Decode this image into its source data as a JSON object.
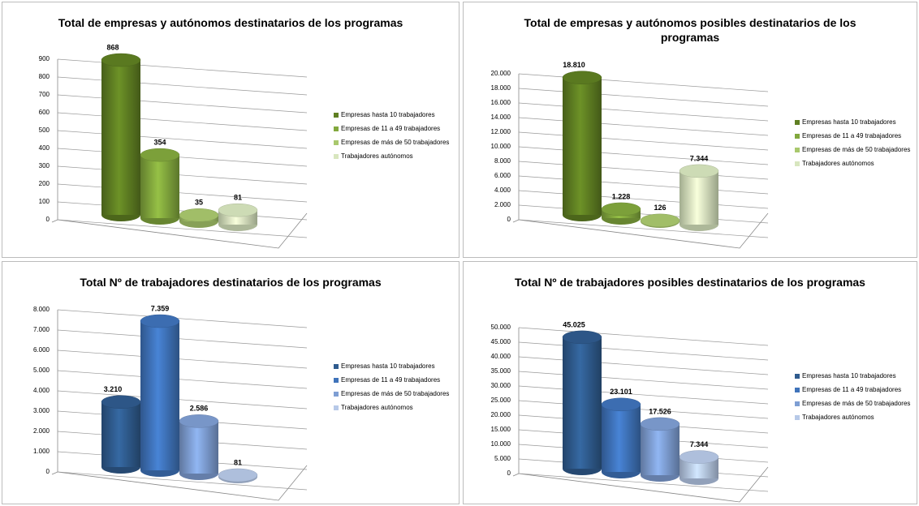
{
  "chart_data": [
    {
      "type": "bar",
      "title": "Total de empresas y autónomos destinatarios de los programas",
      "categories": [
        "Empresas hasta 10 trabajadores",
        "Empresas de 11 a 49 trabajadores",
        "Empresas de más de 50 trabajadores",
        "Trabajadores autónomos"
      ],
      "values": [
        868,
        354,
        35,
        81
      ],
      "colors": [
        "#5f7f22",
        "#82a83d",
        "#a9c86d",
        "#d8e6bf"
      ],
      "ylim": [
        0,
        900
      ],
      "yticks": [
        0,
        100,
        200,
        300,
        400,
        500,
        600,
        700,
        800,
        900
      ],
      "grid": true
    },
    {
      "type": "bar",
      "title": "Total de empresas y autónomos posibles destinatarios de los programas",
      "categories": [
        "Empresas hasta 10 trabajadores",
        "Empresas de 11 a 49 trabajadores",
        "Empresas de más de 50 trabajadores",
        "Trabajadores autónomos"
      ],
      "values": [
        18810,
        1228,
        126,
        7344
      ],
      "value_labels": [
        "18.810",
        "1.228",
        "126",
        "7.344"
      ],
      "colors": [
        "#5f7f22",
        "#82a83d",
        "#a9c86d",
        "#d8e6bf"
      ],
      "ylim": [
        0,
        20000
      ],
      "yticks": [
        0,
        {
          "value": 2000,
          "label": "2.000"
        },
        {
          "value": 4000,
          "label": "4.000"
        },
        {
          "value": 6000,
          "label": "6.000"
        },
        {
          "value": 8000,
          "label": "8.000"
        },
        {
          "value": 10000,
          "label": "10.000"
        },
        {
          "value": 12000,
          "label": "12.000"
        },
        {
          "value": 14000,
          "label": "14.000"
        },
        {
          "value": 16000,
          "label": "16.000"
        },
        {
          "value": 18000,
          "label": "18.000"
        },
        {
          "value": 20000,
          "label": "20.000"
        }
      ],
      "grid": true
    },
    {
      "type": "bar",
      "title": "Total Nº de trabajadores destinatarios de los programas",
      "categories": [
        "Empresas hasta 10 trabajadores",
        "Empresas de 11 a 49 trabajadores",
        "Empresas de más de 50 trabajadores",
        "Trabajadores autónomos"
      ],
      "values": [
        3210,
        7359,
        2586,
        81
      ],
      "value_labels": [
        "3.210",
        "7.359",
        "2.586",
        "81"
      ],
      "colors": [
        "#2f5b8e",
        "#3f73ba",
        "#7e9ed3",
        "#b7c9e8"
      ],
      "ylim": [
        0,
        8000
      ],
      "yticks": [
        0,
        {
          "value": 1000,
          "label": "1.000"
        },
        {
          "value": 2000,
          "label": "2.000"
        },
        {
          "value": 3000,
          "label": "3.000"
        },
        {
          "value": 4000,
          "label": "4.000"
        },
        {
          "value": 5000,
          "label": "5.000"
        },
        {
          "value": 6000,
          "label": "6.000"
        },
        {
          "value": 7000,
          "label": "7.000"
        },
        {
          "value": 8000,
          "label": "8.000"
        }
      ],
      "grid": true
    },
    {
      "type": "bar",
      "title": "Total Nº de trabajadores posibles destinatarios de los programas",
      "categories": [
        "Empresas hasta 10 trabajadores",
        "Empresas de 11 a 49 trabajadores",
        "Empresas de más de 50 trabajadores",
        "Trabajadores autónomos"
      ],
      "values": [
        45025,
        23101,
        17526,
        7344
      ],
      "value_labels": [
        "45.025",
        "23.101",
        "17.526",
        "7.344"
      ],
      "colors": [
        "#2f5b8e",
        "#3f73ba",
        "#7e9ed3",
        "#b7c9e8"
      ],
      "ylim": [
        0,
        50000
      ],
      "yticks": [
        0,
        {
          "value": 5000,
          "label": "5.000"
        },
        {
          "value": 10000,
          "label": "10.000"
        },
        {
          "value": 15000,
          "label": "15.000"
        },
        {
          "value": 20000,
          "label": "20.000"
        },
        {
          "value": 25000,
          "label": "25.000"
        },
        {
          "value": 30000,
          "label": "30.000"
        },
        {
          "value": 35000,
          "label": "35.000"
        },
        {
          "value": 40000,
          "label": "40.000"
        },
        {
          "value": 45000,
          "label": "45.000"
        },
        {
          "value": 50000,
          "label": "50.000"
        }
      ],
      "grid": true
    }
  ]
}
